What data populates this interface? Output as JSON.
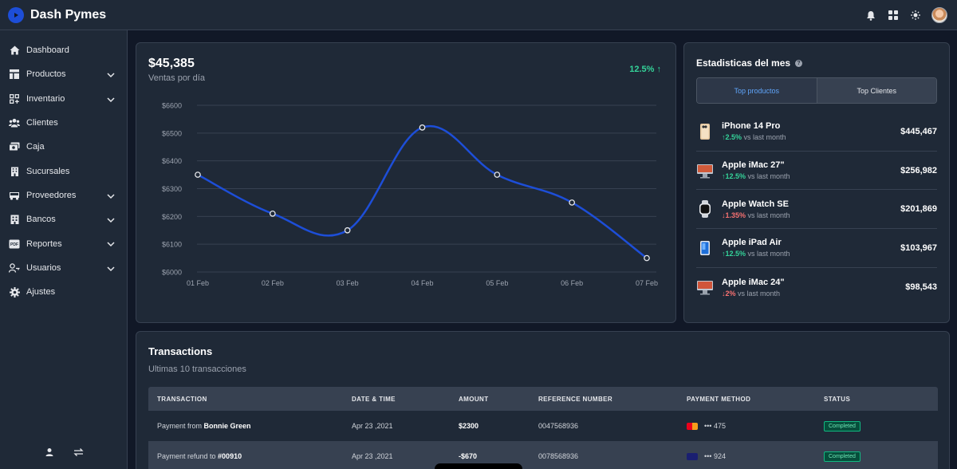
{
  "app": {
    "title": "Dash Pymes"
  },
  "sidebar": {
    "items": [
      {
        "label": "Dashboard",
        "icon": "home-icon",
        "expandable": false
      },
      {
        "label": "Productos",
        "icon": "layout-icon",
        "expandable": true
      },
      {
        "label": "Inventario",
        "icon": "grid-plus-icon",
        "expandable": true
      },
      {
        "label": "Clientes",
        "icon": "users-icon",
        "expandable": false
      },
      {
        "label": "Caja",
        "icon": "cash-icon",
        "expandable": false
      },
      {
        "label": "Sucursales",
        "icon": "building-icon",
        "expandable": false
      },
      {
        "label": "Proveedores",
        "icon": "truck-icon",
        "expandable": true
      },
      {
        "label": "Bancos",
        "icon": "bank-icon",
        "expandable": true
      },
      {
        "label": "Reportes",
        "icon": "pdf-icon",
        "expandable": true
      },
      {
        "label": "Usuarios",
        "icon": "user-key-icon",
        "expandable": true
      },
      {
        "label": "Ajustes",
        "icon": "gear-icon",
        "expandable": false
      }
    ]
  },
  "sales": {
    "amount": "$45,385",
    "label": "Ventas por día",
    "growth": "12.5%"
  },
  "chart_data": {
    "type": "line",
    "categories": [
      "01 Feb",
      "02 Feb",
      "03 Feb",
      "04 Feb",
      "05 Feb",
      "06 Feb",
      "07 Feb"
    ],
    "series": [
      {
        "values": [
          6350,
          6210,
          6150,
          6520,
          6350,
          6250,
          6050
        ]
      }
    ],
    "yticks": [
      "$6000",
      "$6100",
      "$6200",
      "$6300",
      "$6400",
      "$6500",
      "$6600"
    ],
    "ylim": [
      6000,
      6600
    ],
    "grid": true,
    "color": "#1d4ed8"
  },
  "stats": {
    "title": "Estadisticas del mes",
    "tabs": [
      "Top productos",
      "Top Clientes"
    ],
    "products": [
      {
        "name": "iPhone 14 Pro",
        "direction": "up",
        "change": "2.5%",
        "note": "vs last month",
        "value": "$445,467"
      },
      {
        "name": "Apple iMac 27\"",
        "direction": "up",
        "change": "12.5%",
        "note": "vs last month",
        "value": "$256,982"
      },
      {
        "name": "Apple Watch SE",
        "direction": "down",
        "change": "1.35%",
        "note": "vs last month",
        "value": "$201,869"
      },
      {
        "name": "Apple iPad Air",
        "direction": "up",
        "change": "12.5%",
        "note": "vs last month",
        "value": "$103,967"
      },
      {
        "name": "Apple iMac 24\"",
        "direction": "down",
        "change": "2%",
        "note": "vs last month",
        "value": "$98,543"
      }
    ]
  },
  "transactions": {
    "title": "Transactions",
    "subtitle": "Ultimas 10 transacciones",
    "columns": [
      "TRANSACTION",
      "DATE & TIME",
      "AMOUNT",
      "REFERENCE NUMBER",
      "PAYMENT METHOD",
      "STATUS"
    ],
    "rows": [
      {
        "prefix": "Payment from ",
        "who": "Bonnie Green",
        "date": "Apr 23 ,2021",
        "amount": "$2300",
        "ref": "0047568936",
        "card": "mastercard",
        "card_last": "••• 475",
        "status": "Completed"
      },
      {
        "prefix": "Payment refund to ",
        "who": "#00910",
        "date": "Apr 23 ,2021",
        "amount": "-$670",
        "ref": "0078568936",
        "card": "visa",
        "card_last": "••• 924",
        "status": "Completed"
      }
    ]
  }
}
